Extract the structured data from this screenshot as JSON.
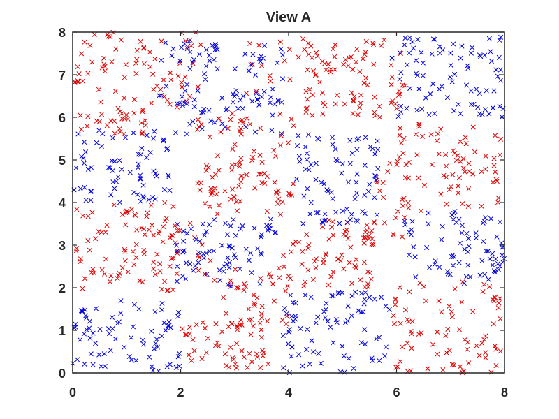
{
  "chart_data": {
    "type": "scatter",
    "title": "View A",
    "xlabel": "",
    "ylabel": "",
    "xlim": [
      0,
      8
    ],
    "ylim": [
      0,
      8
    ],
    "x_ticks": [
      "0",
      "2",
      "4",
      "6",
      "8"
    ],
    "y_ticks": [
      "0",
      "1",
      "2",
      "3",
      "4",
      "5",
      "6",
      "7",
      "8"
    ],
    "grid": false,
    "marker": "x",
    "series": [
      {
        "color": "#e00000",
        "regions": [
          {
            "x": [
              0.0,
              1.4
            ],
            "y": [
              5.6,
              8.0
            ],
            "count": 70
          },
          {
            "x": [
              1.4,
              2.4
            ],
            "y": [
              6.2,
              8.0
            ],
            "count": 32
          },
          {
            "x": [
              0.0,
              1.9
            ],
            "y": [
              1.8,
              4.0
            ],
            "count": 80
          },
          {
            "x": [
              1.6,
              2.6
            ],
            "y": [
              2.0,
              3.6
            ],
            "count": 20
          },
          {
            "x": [
              2.3,
              4.1
            ],
            "y": [
              3.7,
              6.1
            ],
            "count": 95
          },
          {
            "x": [
              2.6,
              4.0
            ],
            "y": [
              1.0,
              2.5
            ],
            "count": 40
          },
          {
            "x": [
              1.9,
              3.7
            ],
            "y": [
              0.1,
              1.3
            ],
            "count": 50
          },
          {
            "x": [
              3.9,
              5.6
            ],
            "y": [
              2.0,
              3.6
            ],
            "count": 70
          },
          {
            "x": [
              4.3,
              6.2
            ],
            "y": [
              6.0,
              7.9
            ],
            "count": 85
          },
          {
            "x": [
              3.2,
              4.3
            ],
            "y": [
              6.5,
              7.9
            ],
            "count": 15
          },
          {
            "x": [
              6.0,
              8.0
            ],
            "y": [
              3.8,
              5.9
            ],
            "count": 75
          },
          {
            "x": [
              5.4,
              6.2
            ],
            "y": [
              3.1,
              5.0
            ],
            "count": 20
          },
          {
            "x": [
              5.9,
              8.0
            ],
            "y": [
              0.0,
              2.2
            ],
            "count": 80
          }
        ]
      },
      {
        "color": "#0000e0",
        "regions": [
          {
            "x": [
              0.0,
              1.8
            ],
            "y": [
              4.0,
              5.7
            ],
            "count": 70
          },
          {
            "x": [
              1.9,
              3.9
            ],
            "y": [
              5.6,
              7.9
            ],
            "count": 85
          },
          {
            "x": [
              1.5,
              2.3
            ],
            "y": [
              6.3,
              7.8
            ],
            "count": 15
          },
          {
            "x": [
              4.1,
              5.7
            ],
            "y": [
              3.5,
              5.6
            ],
            "count": 80
          },
          {
            "x": [
              1.9,
              3.8
            ],
            "y": [
              2.0,
              3.7
            ],
            "count": 75
          },
          {
            "x": [
              0.0,
              2.0
            ],
            "y": [
              0.0,
              1.7
            ],
            "count": 75
          },
          {
            "x": [
              3.9,
              5.9
            ],
            "y": [
              0.0,
              1.9
            ],
            "count": 80
          },
          {
            "x": [
              5.9,
              8.0
            ],
            "y": [
              6.0,
              7.9
            ],
            "count": 85
          },
          {
            "x": [
              6.1,
              8.0
            ],
            "y": [
              2.1,
              3.8
            ],
            "count": 75
          }
        ]
      }
    ]
  }
}
